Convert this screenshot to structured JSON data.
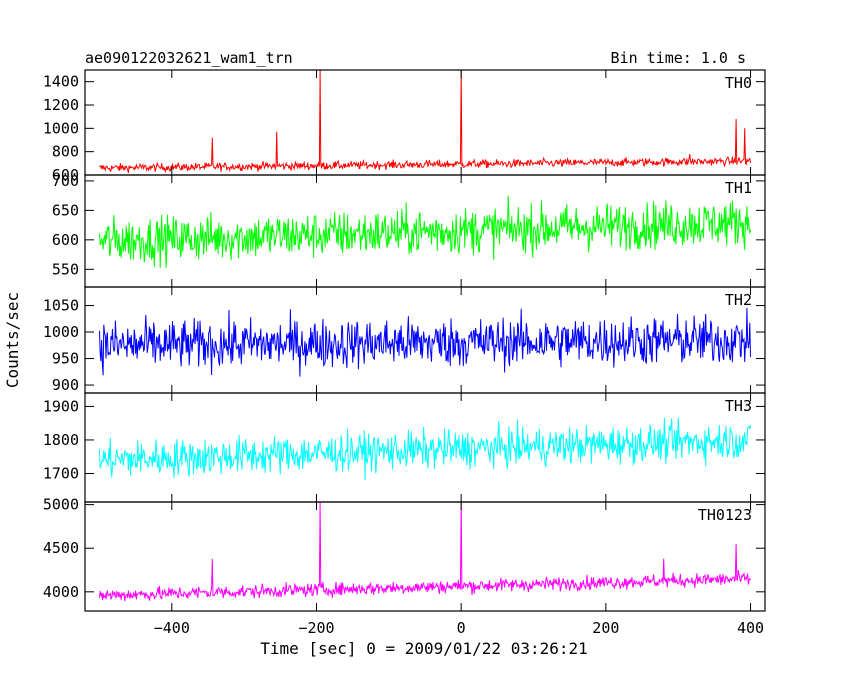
{
  "header": {
    "left_title": "ae090122032621_wam1_trn",
    "right_title": "Bin time: 1.0 s"
  },
  "chart_data": {
    "type": "line",
    "title": "ae090122032621_wam1_trn",
    "subtitle": "Bin time: 1.0 s",
    "xlabel": "Time [sec] 0 = 2009/01/22 03:26:21",
    "ylabel": "Counts/sec",
    "xlim": [
      -520,
      420
    ],
    "x_ticks": [
      -400,
      -200,
      0,
      200,
      400
    ],
    "x_tick_labels": [
      "−400",
      "−200",
      "0",
      "200",
      "400"
    ],
    "x_data_range": [
      -500,
      400
    ],
    "grid": false,
    "panels": [
      {
        "label": "TH0",
        "color": "#ff0000",
        "ylim": [
          600,
          1500
        ],
        "y_ticks": [
          600,
          800,
          1000,
          1200,
          1400
        ],
        "y_tick_labels": [
          "600",
          "800",
          "1000",
          "1200",
          "1400"
        ],
        "baseline_start": 660,
        "baseline_end": 720,
        "noise": 25,
        "spikes": [
          {
            "x": -344,
            "y": 920
          },
          {
            "x": -255,
            "y": 970
          },
          {
            "x": -195,
            "y": 1500
          },
          {
            "x": 0,
            "y": 1500
          },
          {
            "x": 316,
            "y": 780
          },
          {
            "x": 380,
            "y": 1080
          },
          {
            "x": 392,
            "y": 1000
          }
        ]
      },
      {
        "label": "TH1",
        "color": "#00ff00",
        "ylim": [
          520,
          710
        ],
        "y_ticks": [
          550,
          600,
          650,
          700
        ],
        "y_tick_labels": [
          "550",
          "600",
          "650",
          "700"
        ],
        "baseline_start": 598,
        "baseline_end": 630,
        "noise": 28,
        "spikes": []
      },
      {
        "label": "TH2",
        "color": "#0000ff",
        "ylim": [
          885,
          1085
        ],
        "y_ticks": [
          900,
          950,
          1000,
          1050
        ],
        "y_tick_labels": [
          "900",
          "950",
          "1000",
          "1050"
        ],
        "baseline_start": 975,
        "baseline_end": 985,
        "noise": 33,
        "spikes": []
      },
      {
        "label": "TH3",
        "color": "#00ffff",
        "ylim": [
          1615,
          1940
        ],
        "y_ticks": [
          1700,
          1800,
          1900
        ],
        "y_tick_labels": [
          "1700",
          "1800",
          "1900"
        ],
        "baseline_start": 1740,
        "baseline_end": 1800,
        "noise": 40,
        "spikes": []
      },
      {
        "label": "TH0123",
        "color": "#ff00ff",
        "ylim": [
          3780,
          5030
        ],
        "y_ticks": [
          4000,
          4500,
          5000
        ],
        "y_tick_labels": [
          "4000",
          "4500",
          "5000"
        ],
        "baseline_start": 3960,
        "baseline_end": 4150,
        "noise": 55,
        "spikes": [
          {
            "x": -344,
            "y": 4380
          },
          {
            "x": -195,
            "y": 5030
          },
          {
            "x": 0,
            "y": 5030
          },
          {
            "x": 280,
            "y": 4380
          },
          {
            "x": 380,
            "y": 4550
          }
        ]
      }
    ]
  }
}
